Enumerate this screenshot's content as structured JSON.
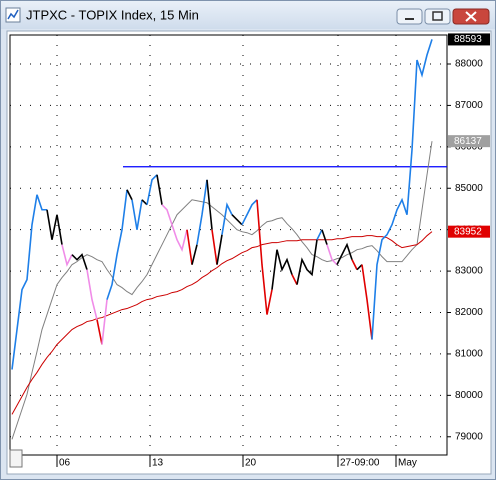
{
  "chart_data": {
    "type": "line",
    "title": "JTPXC - TOPIX Index, 15 Min",
    "xlim": [
      -0.4,
      87
    ],
    "xticks": [
      {
        "value": 9,
        "label": "06"
      },
      {
        "value": 27.6,
        "label": "13"
      },
      {
        "value": 46.2,
        "label": "20"
      },
      {
        "value": 65.2,
        "label": "27-09:00"
      },
      {
        "value": 76.8,
        "label": "May"
      }
    ],
    "ylim": [
      78560,
      88700
    ],
    "yticks": [
      79000,
      80000,
      81000,
      82000,
      83000,
      84000,
      85000,
      86000,
      87000,
      88000
    ],
    "grid": true,
    "hline": {
      "value": 85520,
      "color": "#0000ff"
    },
    "series": [
      {
        "color": "#1e7fe8",
        "label_color": "#000000",
        "values": [
          80625,
          81589,
          82553,
          82794,
          84120,
          84843,
          84481,
          84481,
          83758,
          84361,
          83638,
          83156,
          83397,
          83276,
          83397,
          83035,
          82312,
          81830,
          81228,
          82312,
          82674,
          83397,
          83999,
          84963,
          84722,
          83999,
          84722,
          84602,
          85204,
          85325,
          84602,
          84481,
          84120,
          83758,
          83517,
          83999,
          83156,
          83638,
          84361,
          85204,
          83999,
          83156,
          83879,
          84602,
          84361,
          84240,
          84120,
          84361,
          84602,
          84722,
          83156,
          81951,
          82553,
          83517,
          83035,
          83276,
          82915,
          82674,
          83276,
          83035,
          82915,
          83758,
          83999,
          83638,
          83276,
          83156,
          83397,
          83638,
          83276,
          83035,
          83156,
          82312,
          81348,
          83156,
          83758,
          83879,
          84120,
          84481,
          84722,
          84361,
          85927,
          88096,
          87735,
          88217,
          88593
        ],
        "point_colors": [
          "#1e7fe8",
          "#1e7fe8",
          "#1e7fe8",
          "#1e7fe8",
          "#1e7fe8",
          "#1e7fe8",
          "#1e7fe8",
          "#1e7fe8",
          "#000000",
          "#000000",
          "#000000",
          "#f08ce8",
          "#f08ce8",
          "#000000",
          "#000000",
          "#000000",
          "#f08ce8",
          "#f08ce8",
          "#e00000",
          "#f08ce8",
          "#1e7fe8",
          "#1e7fe8",
          "#1e7fe8",
          "#1e7fe8",
          "#000000",
          "#1e7fe8",
          "#1e7fe8",
          "#000000",
          "#1e7fe8",
          "#1e7fe8",
          "#000000",
          "#f08ce8",
          "#f08ce8",
          "#f08ce8",
          "#f08ce8",
          "#f08ce8",
          "#e00000",
          "#000000",
          "#1e7fe8",
          "#1e7fe8",
          "#000000",
          "#e00000",
          "#000000",
          "#1e7fe8",
          "#1e7fe8",
          "#000000",
          "#000000",
          "#1e7fe8",
          "#1e7fe8",
          "#1e7fe8",
          "#e00000",
          "#e00000",
          "#e00000",
          "#000000",
          "#000000",
          "#000000",
          "#000000",
          "#e00000",
          "#000000",
          "#000000",
          "#000000",
          "#000000",
          "#1e7fe8",
          "#000000",
          "#f08ce8",
          "#f08ce8",
          "#000000",
          "#000000",
          "#000000",
          "#e00000",
          "#000000",
          "#e00000",
          "#e00000",
          "#1e7fe8",
          "#1e7fe8",
          "#1e7fe8",
          "#1e7fe8",
          "#1e7fe8",
          "#1e7fe8",
          "#1e7fe8",
          "#1e7fe8",
          "#1e7fe8",
          "#1e7fe8",
          "#1e7fe8",
          "#1e7fe8"
        ]
      },
      {
        "color": "#808080",
        "label_color": "#a0a0a0",
        "values": [
          78938,
          79300,
          79661,
          80023,
          80553,
          81059,
          81589,
          81951,
          82312,
          82674,
          82843,
          82987,
          83156,
          83228,
          83325,
          83397,
          83349,
          83276,
          83228,
          83035,
          82867,
          82674,
          82602,
          82505,
          82433,
          82602,
          82746,
          82915,
          83156,
          83397,
          83638,
          83879,
          84120,
          84361,
          84481,
          84602,
          84722,
          84698,
          84674,
          84650,
          84554,
          84457,
          84361,
          84240,
          84120,
          83999,
          83951,
          83927,
          83879,
          83975,
          84096,
          84192,
          84216,
          84264,
          84289,
          84144,
          84024,
          83879,
          83710,
          83566,
          83397,
          83349,
          83276,
          83228,
          83252,
          83301,
          83325,
          83397,
          83445,
          83517,
          83541,
          83590,
          83614,
          83493,
          83349,
          83228,
          83228,
          83228,
          83228,
          83373,
          83517,
          83638,
          84481,
          85325,
          86137
        ]
      },
      {
        "color": "#cc0000",
        "label_color": "#e00000",
        "values": [
          79541,
          79758,
          79975,
          80192,
          80384,
          80553,
          80746,
          80915,
          81059,
          81228,
          81348,
          81469,
          81589,
          81662,
          81710,
          81782,
          81806,
          81854,
          81878,
          81927,
          81975,
          82023,
          82071,
          82096,
          82144,
          82192,
          82264,
          82312,
          82336,
          82385,
          82409,
          82433,
          82481,
          82505,
          82553,
          82626,
          82674,
          82746,
          82843,
          82915,
          83011,
          83084,
          83180,
          83252,
          83301,
          83373,
          83445,
          83493,
          83566,
          83590,
          83638,
          83662,
          83686,
          83686,
          83710,
          83734,
          83734,
          83734,
          83758,
          83758,
          83758,
          83758,
          83758,
          83758,
          83758,
          83782,
          83782,
          83807,
          83831,
          83831,
          83831,
          83855,
          83855,
          83831,
          83831,
          83807,
          83734,
          83638,
          83566,
          83590,
          83614,
          83638,
          83734,
          83855,
          83952
        ]
      }
    ]
  }
}
